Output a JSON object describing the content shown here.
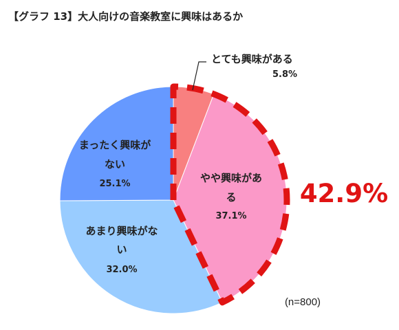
{
  "chart_data": {
    "type": "pie",
    "title": "【グラフ 13】大人向けの音楽教室に興味はあるか",
    "slices": [
      {
        "label_lines": [
          "とても興味がある"
        ],
        "value": 5.8,
        "value_text": "5.8%",
        "color": "#f88080"
      },
      {
        "label_lines": [
          "やや興味がある"
        ],
        "value": 37.1,
        "value_text": "37.1%",
        "color": "#fb99c8"
      },
      {
        "label_lines": [
          "あまり興味がな",
          "い"
        ],
        "value": 32.0,
        "value_text": "32.0%",
        "color": "#99ccff"
      },
      {
        "label_lines": [
          "まったく興味が",
          "ない"
        ],
        "value": 25.1,
        "value_text": "25.1%",
        "color": "#6699ff"
      }
    ],
    "start_angle": "12 o'clock",
    "direction": "clockwise",
    "highlight": {
      "text": "42.9%",
      "color": "#e01414",
      "covers": [
        "とても興味がある",
        "やや興味がある"
      ]
    },
    "note": "(n=800)"
  }
}
